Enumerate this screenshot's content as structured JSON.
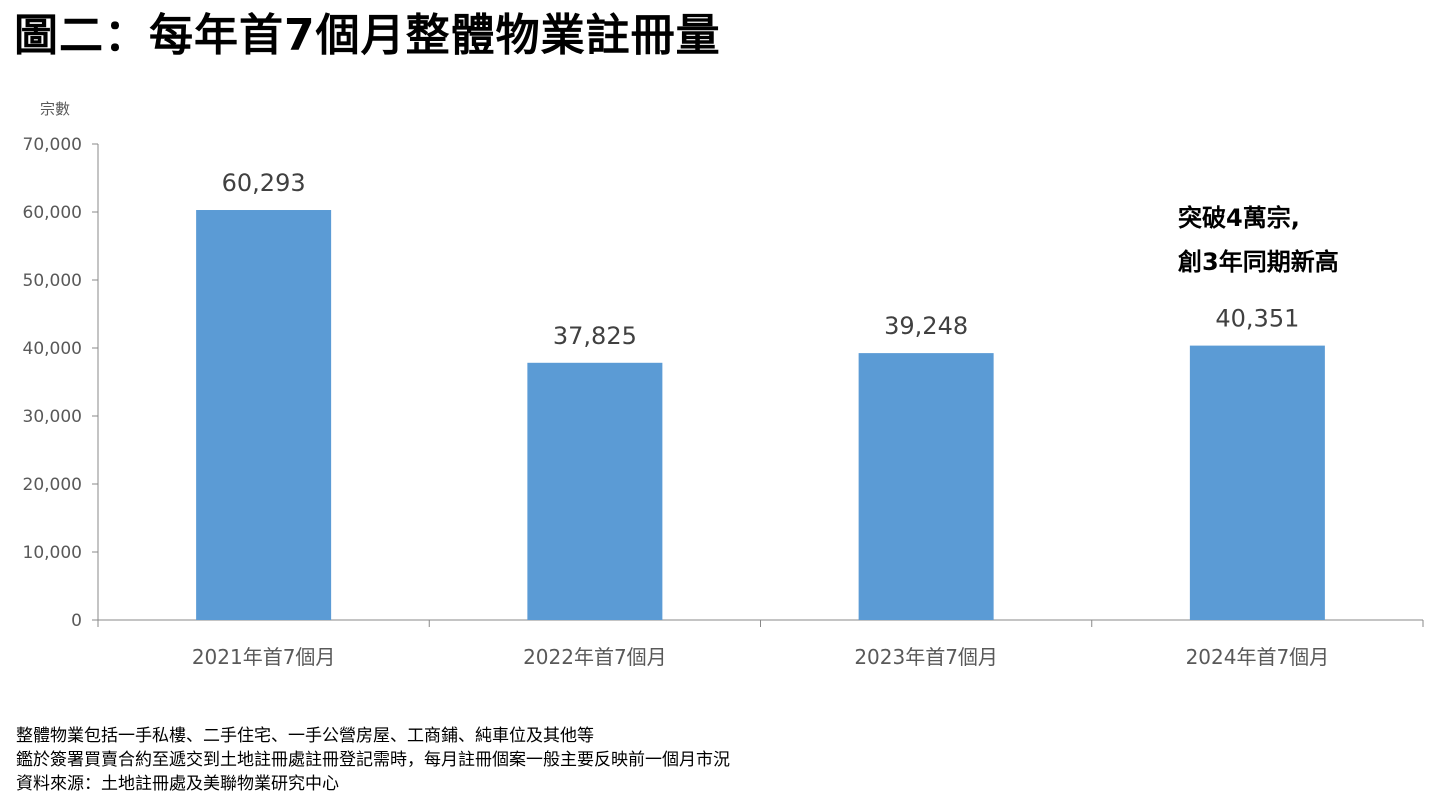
{
  "title": "圖二：每年首7個月整體物業註冊量",
  "chart_data": {
    "type": "bar",
    "title": "圖二：每年首7個月整體物業註冊量",
    "xlabel": "",
    "ylabel": "宗數",
    "categories": [
      "2021年首7個月",
      "2022年首7個月",
      "2023年首7個月",
      "2024年首7個月"
    ],
    "values": [
      60293,
      37825,
      39248,
      40351
    ],
    "value_labels": [
      "60,293",
      "37,825",
      "39,248",
      "40,351"
    ],
    "ylim": [
      0,
      70000
    ],
    "yticks": [
      0,
      10000,
      20000,
      30000,
      40000,
      50000,
      60000,
      70000
    ],
    "ytick_labels": [
      "0",
      "10,000",
      "20,000",
      "30,000",
      "40,000",
      "50,000",
      "60,000",
      "70,000"
    ],
    "bar_color": "#5b9bd5",
    "grid": false,
    "annotation": [
      "突破4萬宗,",
      "創3年同期新高"
    ]
  },
  "notes": [
    "整體物業包括一手私樓、二手住宅、一手公營房屋、工商鋪、純車位及其他等",
    "鑑於簽署買賣合約至遞交到土地註冊處註冊登記需時，每月註冊個案一般主要反映前一個月市況",
    "資料來源：土地註冊處及美聯物業研究中心"
  ]
}
